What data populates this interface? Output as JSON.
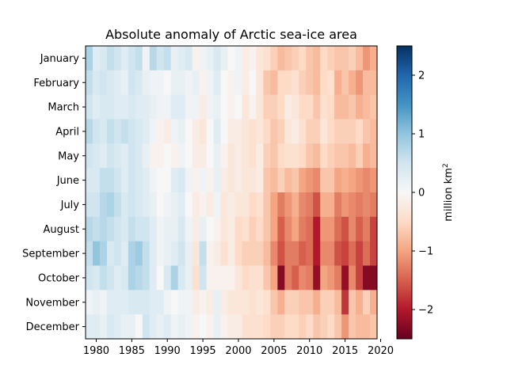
{
  "chart_data": {
    "type": "heatmap",
    "title": "Absolute anomaly of Arctic sea-ice area",
    "xlabel": "",
    "ylabel": "",
    "x_range": [
      1979,
      2019
    ],
    "x_ticks": [
      1980,
      1985,
      1990,
      1995,
      2000,
      2005,
      2010,
      2015,
      2020
    ],
    "months": [
      "January",
      "February",
      "March",
      "April",
      "May",
      "June",
      "July",
      "August",
      "September",
      "October",
      "November",
      "December"
    ],
    "colorbar": {
      "label": "million km²",
      "ticks": [
        2,
        1,
        0,
        -1,
        -2
      ],
      "vmin": -2.5,
      "vmax": 2.5,
      "colormap": "RdBu",
      "colors": [
        "#67001f",
        "#b2182b",
        "#d6604d",
        "#f4a582",
        "#fddbc7",
        "#f7f7f7",
        "#d1e5f0",
        "#92c5de",
        "#4393c3",
        "#2166ac",
        "#053061"
      ]
    },
    "values": [
      [
        0.8,
        0.3,
        0.4,
        0.6,
        0.5,
        0.3,
        0.5,
        0.6,
        0.1,
        0.7,
        0.5,
        0.6,
        0.2,
        0.3,
        0.4,
        -0.1,
        0.1,
        0.2,
        0.4,
        0.2,
        0.0,
        0.1,
        -0.2,
        -0.1,
        -0.3,
        -0.4,
        -0.6,
        -0.8,
        -0.7,
        -0.6,
        -0.5,
        -0.7,
        -0.8,
        -0.5,
        -0.6,
        -0.7,
        -0.7,
        -0.6,
        -0.8,
        -1.1,
        -0.9
      ],
      [
        0.6,
        0.4,
        0.5,
        0.4,
        0.3,
        0.2,
        0.5,
        0.4,
        0.2,
        0.1,
        0.1,
        0.0,
        0.2,
        0.2,
        0.1,
        0.2,
        -0.1,
        0.1,
        0.3,
        0.0,
        -0.1,
        0.1,
        -0.2,
        0.0,
        -0.3,
        -0.7,
        -0.8,
        -0.5,
        -0.5,
        -0.4,
        -0.6,
        -0.7,
        -0.8,
        -0.5,
        -0.4,
        -0.9,
        -0.7,
        -0.9,
        -1.1,
        -0.8,
        -0.8
      ],
      [
        0.5,
        0.3,
        0.4,
        0.4,
        0.3,
        0.3,
        0.4,
        0.3,
        0.3,
        0.2,
        0.1,
        0.1,
        0.3,
        0.3,
        0.1,
        0.1,
        -0.2,
        0.1,
        0.2,
        0.0,
        -0.1,
        0.0,
        -0.3,
        -0.1,
        -0.3,
        -0.6,
        -0.6,
        -0.5,
        -0.2,
        -0.3,
        -0.5,
        -0.5,
        -0.7,
        -0.4,
        -0.5,
        -0.8,
        -0.8,
        -0.7,
        -0.9,
        -0.8,
        -0.7
      ],
      [
        0.7,
        0.5,
        0.4,
        0.6,
        0.5,
        0.6,
        0.5,
        0.4,
        0.3,
        0.1,
        -0.1,
        -0.2,
        0.1,
        0.2,
        0.0,
        -0.2,
        -0.3,
        0.0,
        0.3,
        0.0,
        -0.2,
        -0.2,
        -0.3,
        -0.4,
        -0.3,
        -0.5,
        -0.7,
        -0.6,
        -0.3,
        -0.2,
        -0.4,
        -0.6,
        -0.6,
        -0.3,
        -0.5,
        -0.6,
        -0.6,
        -0.6,
        -0.5,
        -0.7,
        -0.8
      ],
      [
        0.5,
        0.4,
        0.3,
        0.5,
        0.4,
        0.3,
        0.5,
        0.4,
        0.2,
        -0.1,
        -0.1,
        0.0,
        -0.1,
        0.1,
        0.0,
        -0.2,
        -0.2,
        0.0,
        0.2,
        -0.1,
        -0.3,
        -0.2,
        -0.3,
        -0.4,
        -0.2,
        -0.6,
        -0.7,
        -0.5,
        -0.4,
        -0.4,
        -0.5,
        -0.7,
        -0.8,
        -0.5,
        -0.6,
        -0.7,
        -0.7,
        -0.8,
        -0.6,
        -0.9,
        -0.8
      ],
      [
        0.4,
        0.4,
        0.6,
        0.6,
        0.5,
        0.3,
        0.5,
        0.4,
        0.3,
        0.1,
        0.0,
        0.0,
        0.3,
        0.4,
        0.1,
        -0.1,
        0.1,
        -0.1,
        0.2,
        -0.2,
        -0.3,
        -0.2,
        -0.3,
        -0.3,
        -0.2,
        -0.7,
        -0.8,
        -0.6,
        -0.8,
        -0.7,
        -1.0,
        -1.1,
        -1.2,
        -0.7,
        -0.7,
        -1.0,
        -0.9,
        -1.0,
        -1.1,
        -1.2,
        -1.1
      ],
      [
        0.5,
        0.5,
        0.7,
        0.8,
        0.6,
        0.4,
        0.5,
        0.4,
        0.3,
        0.2,
        0.0,
        0.1,
        0.2,
        0.3,
        0.0,
        -0.2,
        -0.1,
        -0.2,
        0.1,
        -0.3,
        -0.2,
        -0.3,
        -0.3,
        -0.5,
        -0.4,
        -0.7,
        -1.0,
        -1.3,
        -1.1,
        -0.9,
        -1.2,
        -1.3,
        -1.6,
        -0.9,
        -0.9,
        -1.3,
        -1.1,
        -1.2,
        -1.3,
        -1.2,
        -1.3
      ],
      [
        0.7,
        0.6,
        0.7,
        0.6,
        0.5,
        0.4,
        0.6,
        0.5,
        0.5,
        0.3,
        0.1,
        0.2,
        0.2,
        0.4,
        0.1,
        -0.2,
        0.2,
        0.0,
        -0.1,
        -0.3,
        -0.2,
        -0.5,
        -0.4,
        -0.6,
        -0.5,
        -0.7,
        -1.0,
        -1.5,
        -1.2,
        -1.0,
        -1.3,
        -1.4,
        -2.0,
        -1.1,
        -1.1,
        -1.4,
        -1.6,
        -1.2,
        -1.5,
        -1.3,
        -1.7
      ],
      [
        0.6,
        1.0,
        0.8,
        0.4,
        0.5,
        0.3,
        0.8,
        0.9,
        0.6,
        0.3,
        0.1,
        0.2,
        0.3,
        0.5,
        0.2,
        -0.3,
        0.6,
        -0.1,
        -0.2,
        -0.4,
        -0.2,
        -0.5,
        -0.6,
        -0.6,
        -0.6,
        -0.8,
        -1.2,
        -1.6,
        -1.3,
        -1.3,
        -1.5,
        -1.4,
        -2.0,
        -1.2,
        -1.2,
        -1.6,
        -1.7,
        -1.4,
        -1.7,
        -1.4,
        -1.7
      ],
      [
        0.5,
        0.4,
        0.6,
        0.5,
        0.3,
        0.4,
        0.8,
        0.7,
        0.6,
        0.3,
        0.0,
        0.4,
        0.8,
        0.4,
        0.2,
        -0.4,
        0.5,
        -0.1,
        -0.1,
        -0.1,
        -0.1,
        -0.3,
        -0.5,
        -0.4,
        -0.4,
        -0.7,
        -1.0,
        -2.3,
        -1.3,
        -1.5,
        -1.2,
        -1.3,
        -2.2,
        -1.0,
        -1.1,
        -1.3,
        -2.2,
        -1.2,
        -1.7,
        -2.3,
        -2.3
      ],
      [
        0.1,
        0.2,
        0.1,
        0.3,
        0.3,
        0.3,
        0.4,
        0.4,
        0.4,
        0.3,
        0.3,
        0.1,
        0.0,
        0.1,
        0.1,
        -0.2,
        -0.1,
        -0.2,
        0.2,
        -0.2,
        -0.3,
        -0.3,
        -0.3,
        -0.4,
        -0.3,
        -0.4,
        -0.7,
        -0.9,
        -0.6,
        -0.6,
        -0.7,
        -0.7,
        -0.9,
        -0.6,
        -0.6,
        -0.8,
        -1.8,
        -0.7,
        -0.9,
        -0.6,
        -0.9
      ],
      [
        0.3,
        0.3,
        0.2,
        0.4,
        0.3,
        0.2,
        0.2,
        0.0,
        0.5,
        0.3,
        0.2,
        0.3,
        0.1,
        0.2,
        0.1,
        -0.1,
        0.0,
        -0.1,
        0.2,
        -0.1,
        -0.2,
        -0.2,
        -0.4,
        -0.4,
        -0.4,
        -0.5,
        -0.6,
        -0.6,
        -0.5,
        -0.5,
        -0.6,
        -0.5,
        -0.7,
        -0.6,
        -0.5,
        -0.7,
        -1.1,
        -0.7,
        -0.8,
        -0.8,
        -0.7
      ]
    ]
  }
}
